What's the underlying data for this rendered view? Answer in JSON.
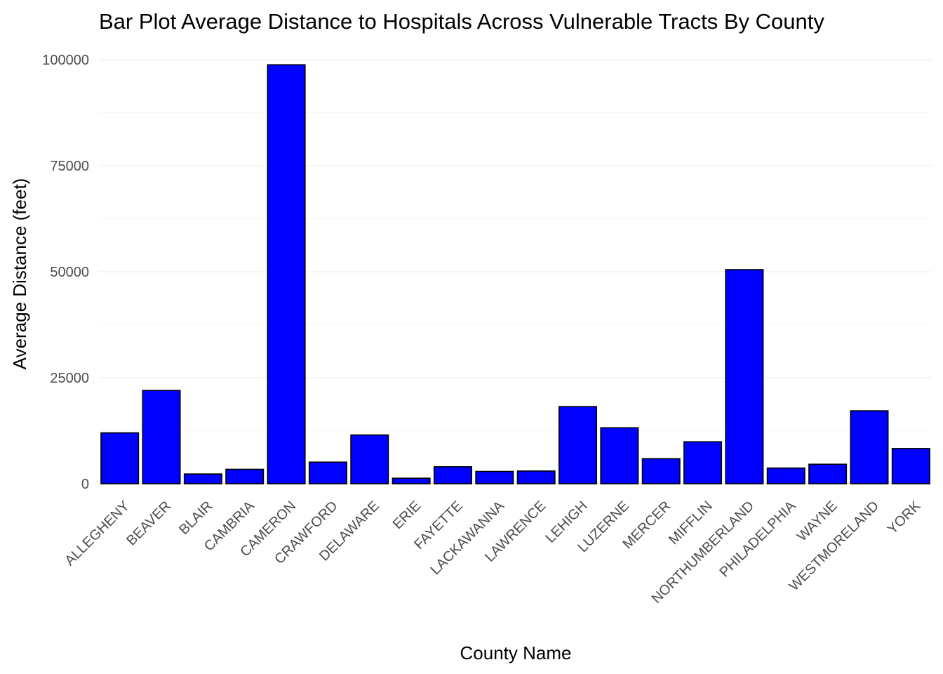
{
  "chart_data": {
    "type": "bar",
    "title": "Bar Plot Average Distance to Hospitals Across Vulnerable Tracts By County",
    "xlabel": "County Name",
    "ylabel": "Average Distance (feet)",
    "categories": [
      "ALLEGHENY",
      "BEAVER",
      "BLAIR",
      "CAMBRIA",
      "CAMERON",
      "CRAWFORD",
      "DELAWARE",
      "ERIE",
      "FAYETTE",
      "LACKAWANNA",
      "LAWRENCE",
      "LEHIGH",
      "LUZERNE",
      "MERCER",
      "MIFFLIN",
      "NORTHUMBERLAND",
      "PHILADELPHIA",
      "WAYNE",
      "WESTMORELAND",
      "YORK"
    ],
    "values": [
      12000,
      22000,
      2300,
      3400,
      98800,
      5100,
      11500,
      1300,
      4000,
      2900,
      3000,
      18200,
      13200,
      5900,
      9900,
      50500,
      3700,
      4600,
      17200,
      8300
    ],
    "ylim": [
      0,
      100000
    ],
    "yticks": [
      0,
      25000,
      50000,
      75000,
      100000
    ],
    "ytick_labels": [
      "0",
      "25000",
      "50000",
      "75000",
      "100000"
    ],
    "grid": true,
    "bar_fill": "#0000ff",
    "bar_stroke": "#000000"
  }
}
